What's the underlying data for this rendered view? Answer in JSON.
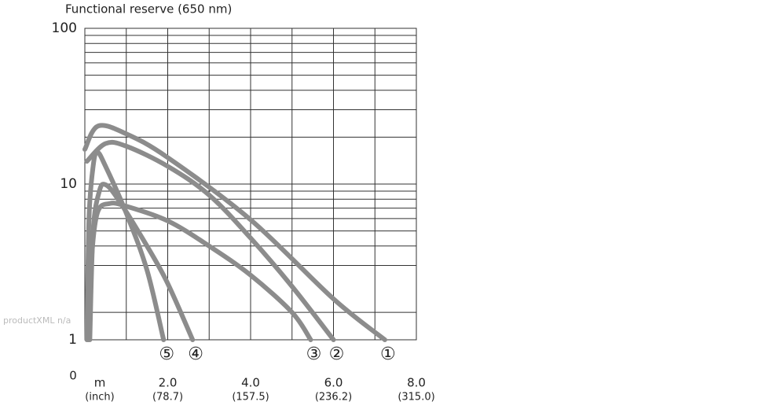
{
  "chart_data": {
    "type": "line",
    "title": "Functional reserve (650 nm)",
    "watermark": "productXML n/a",
    "origin_label": "0",
    "x_unit": "m",
    "x_unit_secondary": "(inch)",
    "xlim": [
      0,
      8
    ],
    "xticks": [
      {
        "value": 2,
        "label": "2.0"
      },
      {
        "value": 4,
        "label": "4.0"
      },
      {
        "value": 6,
        "label": "6.0"
      },
      {
        "value": 8,
        "label": "8.0"
      }
    ],
    "xtick_secondary_labels": [
      "(78.7)",
      "(157.5)",
      "(236.2)",
      "(315.0)"
    ],
    "x_minor_grid": [
      1,
      3,
      5,
      7
    ],
    "ylim": [
      1,
      100
    ],
    "yticks": [
      1,
      10,
      100
    ],
    "y_minor_grid": [
      1.5,
      3,
      4,
      5,
      6,
      7,
      8,
      9,
      20,
      30,
      40,
      50,
      60,
      70,
      80,
      90
    ],
    "log_y": true,
    "grid": true,
    "series": [
      {
        "name": "①",
        "color": "#8c8c8c",
        "x": [
          0,
          0.32,
          1.0,
          2.0,
          4.0,
          6.0,
          7.24
        ],
        "values": [
          16.7,
          23.6,
          21,
          14.8,
          5.9,
          1.83,
          1
        ]
      },
      {
        "name": "②",
        "color": "#8c8c8c",
        "x": [
          0.05,
          0.5,
          1.0,
          2.0,
          3.0,
          4.0,
          5.0,
          6.0
        ],
        "values": [
          14,
          18.2,
          17.5,
          13,
          8.5,
          4.5,
          2.2,
          1
        ]
      },
      {
        "name": "③",
        "color": "#8c8c8c",
        "x": [
          0.08,
          0.15,
          0.3,
          0.6,
          1.0,
          2.0,
          3.0,
          4.0,
          5.0,
          5.45
        ],
        "values": [
          1,
          3,
          6.5,
          7.5,
          7.2,
          5.8,
          4,
          2.6,
          1.5,
          1
        ]
      },
      {
        "name": "④",
        "color": "#8c8c8c",
        "x": [
          0.12,
          0.2,
          0.35,
          0.5,
          0.8,
          1.5,
          2.0,
          2.6
        ],
        "values": [
          1,
          5,
          9,
          9.9,
          8,
          4,
          2.3,
          1
        ]
      },
      {
        "name": "⑤",
        "color": "#8c8c8c",
        "x": [
          0.05,
          0.1,
          0.2,
          0.3,
          0.5,
          1.0,
          1.5,
          1.9
        ],
        "values": [
          1,
          6,
          13,
          16,
          13,
          6.5,
          2.8,
          1
        ]
      }
    ]
  }
}
